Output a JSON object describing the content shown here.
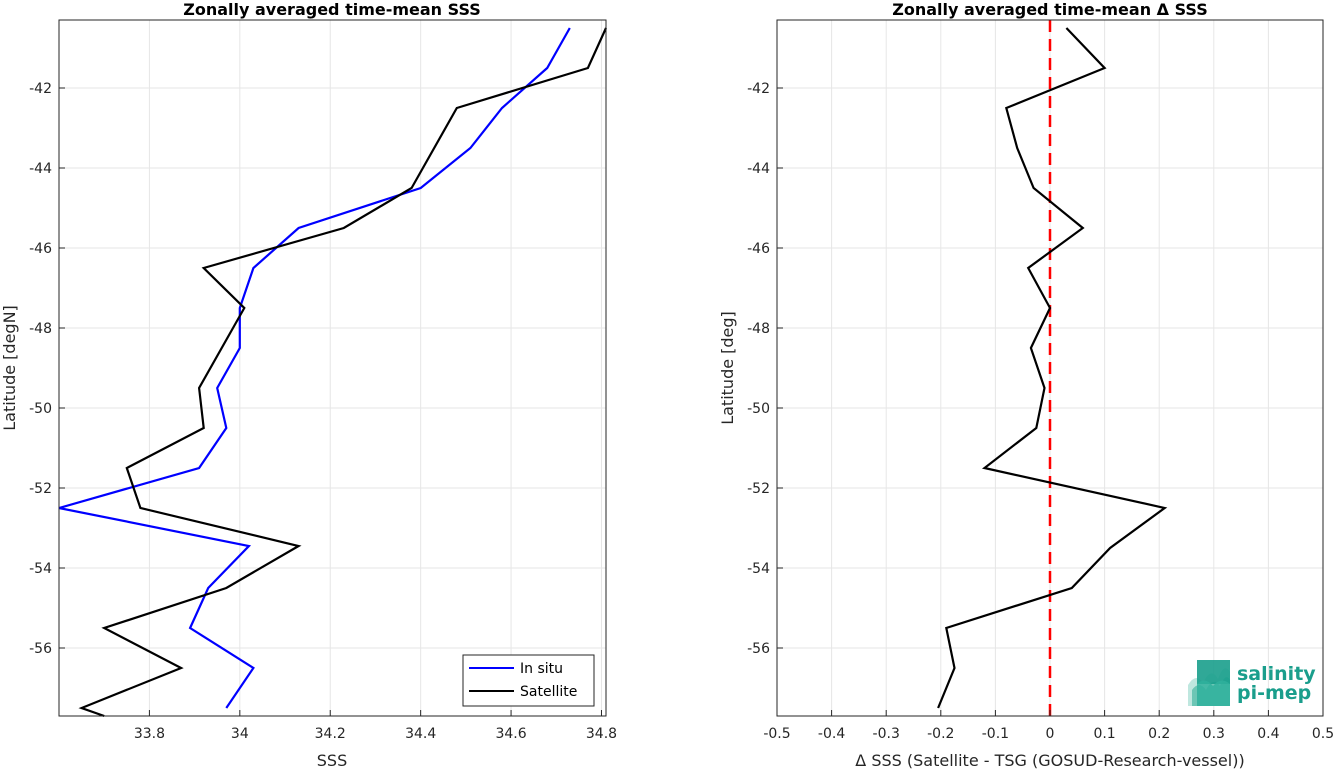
{
  "chart_data": [
    {
      "type": "line",
      "title": "Zonally averaged time-mean SSS",
      "xlabel": "SSS",
      "ylabel": "Latitude [degN]",
      "xlim": [
        33.6,
        34.81
      ],
      "ylim": [
        -57.7,
        -40.3
      ],
      "xticks": [
        "33.8",
        "34",
        "34.2",
        "34.4",
        "34.6",
        "34.8"
      ],
      "yticks": [
        "-42",
        "-44",
        "-46",
        "-48",
        "-50",
        "-52",
        "-54",
        "-56"
      ],
      "grid": true,
      "legend": "bottom-right",
      "series": [
        {
          "name": "In situ",
          "color": "#0000ff",
          "x": [
            34.73,
            34.68,
            34.58,
            34.51,
            34.4,
            34.13,
            34.03,
            34.0,
            34.0,
            33.95,
            33.97,
            33.91,
            33.6,
            34.02,
            33.93,
            33.89,
            34.03,
            33.97
          ],
          "y": [
            -40.5,
            -41.5,
            -42.5,
            -43.5,
            -44.5,
            -45.5,
            -46.5,
            -47.5,
            -48.5,
            -49.5,
            -50.5,
            -51.5,
            -52.5,
            -53.45,
            -54.5,
            -55.5,
            -56.5,
            -57.5
          ]
        },
        {
          "name": "Satellite",
          "color": "#000000",
          "x": [
            34.81,
            34.77,
            34.48,
            34.38,
            34.23,
            33.92,
            34.01,
            33.91,
            33.92,
            33.75,
            33.78,
            34.13,
            33.97,
            33.7,
            33.87,
            33.65,
            33.7
          ],
          "y": [
            -40.5,
            -41.5,
            -42.5,
            -44.5,
            -45.5,
            -46.5,
            -47.5,
            -49.5,
            -50.5,
            -51.5,
            -52.5,
            -53.45,
            -54.5,
            -55.5,
            -56.5,
            -57.5,
            -57.7
          ]
        }
      ]
    },
    {
      "type": "line",
      "title": "Zonally averaged time-mean Δ SSS",
      "xlabel": "Δ SSS (Satellite - TSG (GOSUD-Research-vessel))",
      "ylabel": "Latitude [deg]",
      "xlim": [
        -0.5,
        0.5
      ],
      "ylim": [
        -57.7,
        -40.3
      ],
      "xticks": [
        "-0.5",
        "-0.4",
        "-0.3",
        "-0.2",
        "-0.1",
        "0",
        "0.1",
        "0.2",
        "0.3",
        "0.4",
        "0.5"
      ],
      "yticks": [
        "-42",
        "-44",
        "-46",
        "-48",
        "-50",
        "-52",
        "-54",
        "-56"
      ],
      "grid": true,
      "reference_line": {
        "x": 0,
        "color": "#ff0000",
        "style": "dashed"
      },
      "series": [
        {
          "color": "#000000",
          "x": [
            0.03,
            0.1,
            -0.08,
            -0.06,
            -0.03,
            0.06,
            -0.04,
            0.0,
            -0.035,
            -0.01,
            -0.025,
            -0.12,
            0.21,
            0.11,
            0.04,
            -0.19,
            -0.175,
            -0.205
          ],
          "y": [
            -40.5,
            -41.5,
            -42.5,
            -43.5,
            -44.5,
            -45.5,
            -46.5,
            -47.5,
            -48.5,
            -49.5,
            -50.5,
            -51.5,
            -52.5,
            -53.5,
            -54.5,
            -55.5,
            -56.5,
            -57.5
          ]
        }
      ]
    }
  ],
  "logo": {
    "line1": "salinity",
    "line2": "pi-mep",
    "color": "#1a9e8c"
  }
}
